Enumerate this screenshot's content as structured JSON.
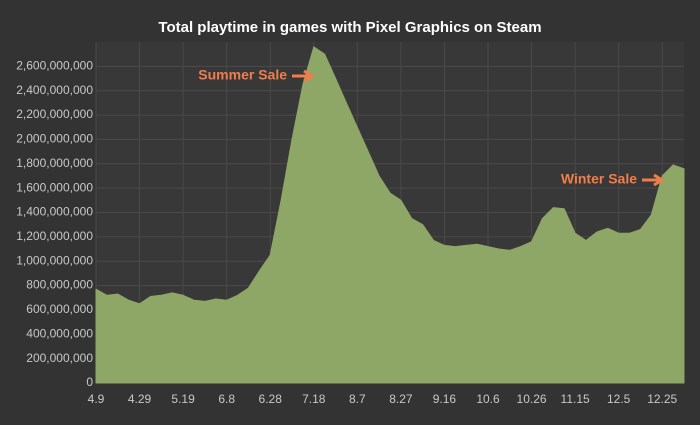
{
  "chart_data": {
    "type": "area",
    "title": "Total playtime in games with Pixel Graphics on Steam",
    "categories": [
      "4.9",
      null,
      null,
      null,
      "4.29",
      null,
      null,
      null,
      "5.19",
      null,
      null,
      null,
      "6.8",
      null,
      null,
      null,
      "6.28",
      null,
      null,
      null,
      "7.18",
      null,
      null,
      null,
      "8.7",
      null,
      null,
      null,
      "8.27",
      null,
      null,
      null,
      "9.16",
      null,
      null,
      null,
      "10.6",
      null,
      null,
      null,
      "10.26",
      null,
      null,
      null,
      "11.15",
      null,
      null,
      null,
      "12.5",
      null,
      null,
      null,
      "12.25",
      null,
      null
    ],
    "values": [
      770000000,
      720000000,
      730000000,
      680000000,
      650000000,
      710000000,
      720000000,
      740000000,
      720000000,
      680000000,
      670000000,
      690000000,
      680000000,
      720000000,
      780000000,
      920000000,
      1050000000,
      1500000000,
      2000000000,
      2450000000,
      2760000000,
      2700000000,
      2500000000,
      2300000000,
      2100000000,
      1900000000,
      1700000000,
      1560000000,
      1500000000,
      1350000000,
      1300000000,
      1170000000,
      1130000000,
      1120000000,
      1130000000,
      1140000000,
      1120000000,
      1100000000,
      1090000000,
      1120000000,
      1160000000,
      1350000000,
      1440000000,
      1430000000,
      1230000000,
      1170000000,
      1240000000,
      1270000000,
      1230000000,
      1230000000,
      1260000000,
      1380000000,
      1700000000,
      1790000000,
      1760000000
    ],
    "color": "#8ea766",
    "ylim": [
      0,
      2800000000
    ],
    "yticks": [
      0,
      {
        "value": 200000000,
        "label": "200,000,000"
      },
      {
        "value": 400000000,
        "label": "400,000,000"
      },
      {
        "value": 600000000,
        "label": "600,000,000"
      },
      {
        "value": 800000000,
        "label": "800,000,000"
      },
      {
        "value": 1000000000,
        "label": "1,000,000,000"
      },
      {
        "value": 1200000000,
        "label": "1,200,000,000"
      },
      {
        "value": 1400000000,
        "label": "1,400,000,000"
      },
      {
        "value": 1600000000,
        "label": "1,600,000,000"
      },
      {
        "value": 1800000000,
        "label": "1,800,000,000"
      },
      {
        "value": 2000000000,
        "label": "2,000,000,000"
      },
      {
        "value": 2200000000,
        "label": "2,200,000,000"
      },
      {
        "value": 2400000000,
        "label": "2,400,000,000"
      },
      {
        "value": 2600000000,
        "label": "2,600,000,000"
      }
    ],
    "grid": true,
    "annotations": [
      "Summer Sale",
      "Winter Sale"
    ]
  }
}
